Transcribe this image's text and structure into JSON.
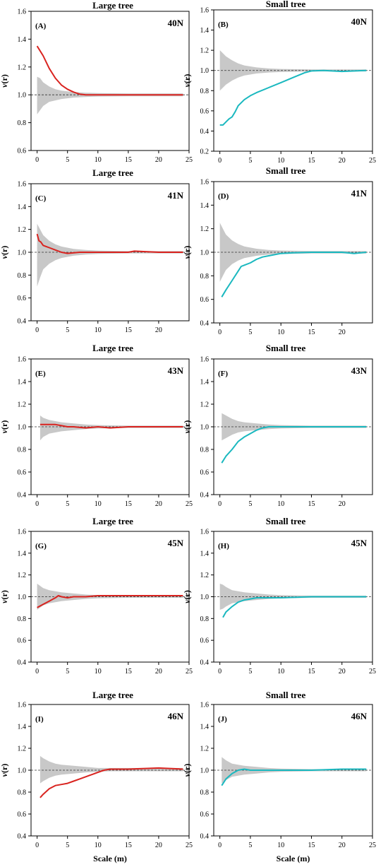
{
  "figure": {
    "x_axis_label": "Scale (m)",
    "y_axis_label_italic": "v",
    "y_axis_label_tail": "(r)"
  },
  "colors": {
    "large": "#d9231f",
    "small": "#1ab8bf",
    "envelope": "#c8c8c8",
    "reference": "#333333",
    "axis": "#000000"
  },
  "chart_data": [
    {
      "type": "line",
      "panel": "(A)",
      "title": "Large tree",
      "plot": "40N",
      "size": "large",
      "ylim": [
        0.6,
        1.6
      ],
      "yticks": [
        0.6,
        0.8,
        1.0,
        1.2,
        1.4,
        1.6
      ],
      "xlim": [
        -1,
        25
      ],
      "xticks": [
        0,
        5,
        10,
        15,
        20,
        25
      ],
      "reference": 1.0,
      "series": {
        "x": [
          0,
          1,
          2,
          3,
          4,
          5,
          6,
          7,
          8,
          10,
          15,
          20,
          24
        ],
        "y": [
          1.35,
          1.28,
          1.19,
          1.12,
          1.07,
          1.04,
          1.02,
          1.005,
          1.0,
          1.0,
          1.0,
          1.0,
          1.0
        ]
      },
      "envelope": {
        "x": [
          0,
          0.5,
          1,
          2,
          3,
          4,
          6,
          8,
          10,
          15,
          20,
          24
        ],
        "upper": [
          1.13,
          1.12,
          1.09,
          1.06,
          1.04,
          1.03,
          1.02,
          1.015,
          1.012,
          1.01,
          1.01,
          1.01
        ],
        "lower": [
          0.86,
          0.89,
          0.92,
          0.95,
          0.96,
          0.97,
          0.98,
          0.985,
          0.988,
          0.99,
          0.99,
          0.99
        ]
      }
    },
    {
      "type": "line",
      "panel": "(B)",
      "title": "Small tree",
      "plot": "40N",
      "size": "small",
      "ylim": [
        0.2,
        1.6
      ],
      "yticks": [
        0.2,
        0.4,
        0.6,
        0.8,
        1.0,
        1.2,
        1.4,
        1.6
      ],
      "xlim": [
        -1,
        25
      ],
      "xticks": [
        0,
        5,
        10,
        15,
        20,
        25
      ],
      "reference": 1.0,
      "series": {
        "x": [
          0,
          0.5,
          1,
          1.5,
          2,
          2.5,
          3,
          4,
          5,
          6,
          8,
          10,
          12,
          14,
          15,
          17,
          20,
          24
        ],
        "y": [
          0.46,
          0.46,
          0.49,
          0.52,
          0.54,
          0.59,
          0.65,
          0.71,
          0.75,
          0.78,
          0.83,
          0.88,
          0.93,
          0.98,
          0.995,
          1.0,
          0.99,
          1.0
        ]
      },
      "envelope": {
        "x": [
          0,
          0.5,
          1,
          2,
          3,
          4,
          6,
          8,
          10,
          15,
          20,
          24
        ],
        "upper": [
          1.2,
          1.17,
          1.14,
          1.1,
          1.07,
          1.05,
          1.03,
          1.02,
          1.015,
          1.01,
          1.01,
          1.01
        ],
        "lower": [
          0.8,
          0.83,
          0.86,
          0.9,
          0.93,
          0.95,
          0.97,
          0.98,
          0.985,
          0.99,
          0.99,
          0.99
        ]
      }
    },
    {
      "type": "line",
      "panel": "(C)",
      "title": "Large tree",
      "plot": "41N",
      "size": "large",
      "ylim": [
        0.4,
        1.6
      ],
      "yticks": [
        0.4,
        0.6,
        0.8,
        1.0,
        1.2,
        1.4,
        1.6
      ],
      "xlim": [
        -1,
        25
      ],
      "xticks": [
        0,
        5,
        10,
        15,
        20
      ],
      "reference": 1.0,
      "series": {
        "x": [
          0,
          0.3,
          0.6,
          1,
          1.5,
          2,
          3,
          4,
          5,
          7,
          10,
          15,
          16,
          20,
          24
        ],
        "y": [
          1.16,
          1.1,
          1.09,
          1.06,
          1.05,
          1.04,
          1.02,
          1.0,
          0.99,
          1.0,
          1.0,
          1.0,
          1.01,
          1.0,
          1.0
        ]
      },
      "envelope": {
        "x": [
          0,
          0.5,
          1,
          2,
          3,
          4,
          6,
          8,
          10,
          15,
          20,
          24
        ],
        "upper": [
          1.25,
          1.2,
          1.15,
          1.1,
          1.07,
          1.05,
          1.03,
          1.02,
          1.015,
          1.01,
          1.01,
          1.01
        ],
        "lower": [
          0.7,
          0.78,
          0.85,
          0.9,
          0.93,
          0.95,
          0.97,
          0.98,
          0.985,
          0.99,
          0.99,
          0.99
        ]
      }
    },
    {
      "type": "line",
      "panel": "(D)",
      "title": "Small tree",
      "plot": "41N",
      "size": "small",
      "ylim": [
        0.4,
        1.6
      ],
      "yticks": [
        0.4,
        0.6,
        0.8,
        1.0,
        1.2,
        1.4,
        1.6
      ],
      "xlim": [
        -1,
        25
      ],
      "xticks": [
        0,
        5,
        10,
        15,
        20
      ],
      "reference": 1.0,
      "series": {
        "x": [
          0.3,
          1,
          2,
          3,
          3.5,
          4,
          5,
          6,
          7,
          8,
          10,
          12,
          15,
          20,
          22,
          24
        ],
        "y": [
          0.62,
          0.68,
          0.76,
          0.84,
          0.88,
          0.89,
          0.91,
          0.94,
          0.96,
          0.97,
          0.99,
          0.995,
          1.0,
          1.0,
          0.99,
          1.0
        ]
      },
      "envelope": {
        "x": [
          0,
          0.5,
          1,
          2,
          3,
          4,
          6,
          8,
          10,
          15,
          20,
          24
        ],
        "upper": [
          1.25,
          1.2,
          1.15,
          1.1,
          1.07,
          1.05,
          1.03,
          1.02,
          1.015,
          1.01,
          1.01,
          1.01
        ],
        "lower": [
          0.75,
          0.8,
          0.85,
          0.9,
          0.93,
          0.95,
          0.97,
          0.98,
          0.985,
          0.99,
          0.99,
          0.99
        ]
      }
    },
    {
      "type": "line",
      "panel": "(E)",
      "title": "Large tree",
      "plot": "43N",
      "size": "large",
      "ylim": [
        0.4,
        1.6
      ],
      "yticks": [
        0.4,
        0.6,
        0.8,
        1.0,
        1.2,
        1.4,
        1.6
      ],
      "xlim": [
        -1,
        25
      ],
      "xticks": [
        0,
        5,
        10,
        15,
        20,
        25
      ],
      "reference": 1.0,
      "series": {
        "x": [
          0.5,
          2,
          3,
          4,
          5,
          6,
          8,
          10,
          12,
          15,
          20,
          24
        ],
        "y": [
          1.02,
          1.02,
          1.02,
          1.01,
          1.0,
          1.0,
          0.99,
          1.0,
          0.99,
          1.0,
          1.0,
          1.0
        ]
      },
      "envelope": {
        "x": [
          0.5,
          1,
          2,
          3,
          4,
          6,
          8,
          10,
          15,
          20,
          24
        ],
        "upper": [
          1.1,
          1.08,
          1.06,
          1.05,
          1.04,
          1.03,
          1.02,
          1.015,
          1.01,
          1.01,
          1.01
        ],
        "lower": [
          0.88,
          0.91,
          0.94,
          0.95,
          0.96,
          0.97,
          0.98,
          0.985,
          0.99,
          0.99,
          0.99
        ]
      }
    },
    {
      "type": "line",
      "panel": "(F)",
      "title": "Small tree",
      "plot": "43N",
      "size": "small",
      "ylim": [
        0.4,
        1.6
      ],
      "yticks": [
        0.4,
        0.6,
        0.8,
        1.0,
        1.2,
        1.4,
        1.6
      ],
      "xlim": [
        -1,
        25
      ],
      "xticks": [
        0,
        5,
        10,
        15,
        20
      ],
      "reference": 1.0,
      "series": {
        "x": [
          0.3,
          1,
          2,
          3,
          4,
          5,
          6,
          7,
          8,
          10,
          15,
          20,
          24
        ],
        "y": [
          0.68,
          0.74,
          0.8,
          0.87,
          0.91,
          0.94,
          0.97,
          0.99,
          1.0,
          1.0,
          1.0,
          1.0,
          1.0
        ]
      },
      "envelope": {
        "x": [
          0.3,
          1,
          2,
          3,
          4,
          6,
          8,
          10,
          15,
          20,
          24
        ],
        "upper": [
          1.12,
          1.1,
          1.07,
          1.05,
          1.04,
          1.03,
          1.02,
          1.015,
          1.01,
          1.01,
          1.01
        ],
        "lower": [
          0.88,
          0.9,
          0.93,
          0.95,
          0.96,
          0.97,
          0.98,
          0.985,
          0.99,
          0.99,
          0.99
        ]
      }
    },
    {
      "type": "line",
      "panel": "(G)",
      "title": "Large tree",
      "plot": "45N",
      "size": "large",
      "ylim": [
        0.4,
        1.6
      ],
      "yticks": [
        0.4,
        0.6,
        0.8,
        1.0,
        1.2,
        1.4,
        1.6
      ],
      "xlim": [
        -1,
        25
      ],
      "xticks": [
        0,
        5,
        10,
        15,
        20,
        25
      ],
      "reference": 1.0,
      "series": {
        "x": [
          0,
          1,
          2,
          3,
          3.5,
          4,
          5,
          6,
          8,
          10,
          15,
          20,
          24
        ],
        "y": [
          0.9,
          0.93,
          0.96,
          0.99,
          1.01,
          1.0,
          0.99,
          1.0,
          1.0,
          1.01,
          1.01,
          1.01,
          1.01
        ]
      },
      "envelope": {
        "x": [
          0,
          0.5,
          1,
          2,
          3,
          4,
          6,
          8,
          10,
          15,
          20,
          24
        ],
        "upper": [
          1.12,
          1.1,
          1.08,
          1.06,
          1.05,
          1.04,
          1.03,
          1.02,
          1.015,
          1.01,
          1.01,
          1.01
        ],
        "lower": [
          0.88,
          0.9,
          0.92,
          0.94,
          0.95,
          0.96,
          0.97,
          0.98,
          0.985,
          0.99,
          0.99,
          0.99
        ]
      }
    },
    {
      "type": "line",
      "panel": "(H)",
      "title": "Small tree",
      "plot": "45N",
      "size": "small",
      "ylim": [
        0.4,
        1.6
      ],
      "yticks": [
        0.4,
        0.6,
        0.8,
        1.0,
        1.2,
        1.4,
        1.6
      ],
      "xlim": [
        -1,
        25
      ],
      "xticks": [
        0,
        5,
        10,
        15,
        20,
        25
      ],
      "reference": 1.0,
      "series": {
        "x": [
          0.5,
          1,
          2,
          3,
          4,
          5,
          6,
          8,
          10,
          15,
          20,
          24
        ],
        "y": [
          0.81,
          0.86,
          0.91,
          0.95,
          0.97,
          0.98,
          0.99,
          0.99,
          0.99,
          1.0,
          1.0,
          1.0
        ]
      },
      "envelope": {
        "x": [
          0,
          0.5,
          1,
          2,
          3,
          4,
          6,
          8,
          10,
          15,
          20,
          24
        ],
        "upper": [
          1.12,
          1.11,
          1.09,
          1.06,
          1.05,
          1.04,
          1.03,
          1.02,
          1.015,
          1.01,
          1.01,
          1.01
        ],
        "lower": [
          0.88,
          0.89,
          0.91,
          0.94,
          0.95,
          0.96,
          0.97,
          0.98,
          0.985,
          0.99,
          0.99,
          0.99
        ]
      }
    },
    {
      "type": "line",
      "panel": "(I)",
      "title": "Large tree",
      "plot": "46N",
      "size": "large",
      "ylim": [
        0.4,
        1.6
      ],
      "yticks": [
        0.4,
        0.6,
        0.8,
        1.0,
        1.2,
        1.4,
        1.6
      ],
      "xlim": [
        -1,
        25
      ],
      "xticks": [
        0,
        5,
        10,
        15,
        20,
        25
      ],
      "reference": 1.0,
      "series": {
        "x": [
          0.5,
          1,
          2,
          3,
          4,
          5,
          6,
          7,
          8,
          9,
          10,
          11,
          12,
          15,
          20,
          24
        ],
        "y": [
          0.75,
          0.78,
          0.83,
          0.86,
          0.87,
          0.88,
          0.9,
          0.92,
          0.94,
          0.96,
          0.98,
          1.0,
          1.01,
          1.01,
          1.02,
          1.01
        ]
      },
      "envelope": {
        "x": [
          0.5,
          1,
          2,
          3,
          4,
          6,
          8,
          10,
          12,
          15,
          20,
          24
        ],
        "upper": [
          1.13,
          1.11,
          1.08,
          1.06,
          1.05,
          1.04,
          1.03,
          1.02,
          1.02,
          1.02,
          1.02,
          1.02
        ],
        "lower": [
          0.88,
          0.9,
          0.93,
          0.95,
          0.96,
          0.97,
          0.98,
          0.985,
          0.99,
          0.99,
          0.99,
          0.99
        ]
      }
    },
    {
      "type": "line",
      "panel": "(J)",
      "title": "Small tree",
      "plot": "46N",
      "size": "small",
      "ylim": [
        0.4,
        1.6
      ],
      "yticks": [
        0.4,
        0.6,
        0.8,
        1.0,
        1.2,
        1.4,
        1.6
      ],
      "xlim": [
        -1,
        25
      ],
      "xticks": [
        0,
        5,
        10,
        15,
        20,
        25
      ],
      "reference": 1.0,
      "series": {
        "x": [
          0.3,
          1,
          2,
          3,
          4,
          5,
          8,
          10,
          15,
          20,
          24
        ],
        "y": [
          0.86,
          0.92,
          0.97,
          1.0,
          1.01,
          1.0,
          1.0,
          1.0,
          1.0,
          1.01,
          1.01
        ]
      },
      "envelope": {
        "x": [
          0.3,
          1,
          2,
          3,
          4,
          6,
          8,
          10,
          15,
          20,
          24
        ],
        "upper": [
          1.12,
          1.09,
          1.06,
          1.05,
          1.04,
          1.03,
          1.02,
          1.015,
          1.01,
          1.01,
          1.01
        ],
        "lower": [
          0.88,
          0.91,
          0.94,
          0.95,
          0.96,
          0.97,
          0.98,
          0.985,
          0.99,
          0.99,
          0.99
        ]
      }
    }
  ]
}
